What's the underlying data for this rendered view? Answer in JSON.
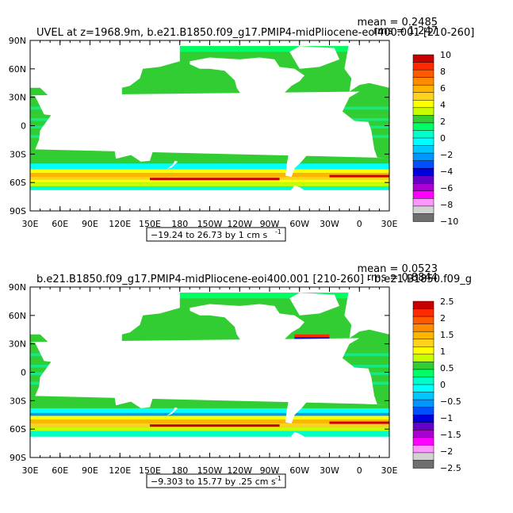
{
  "chart_data": [
    {
      "type": "heatmap",
      "title": "UVEL at z=1968.9m, b.e21.B1850.f09_g17.PMIP4-midPliocene-eoi400.001 [210-260]",
      "stats": {
        "mean": "mean = 0.2485",
        "rms": "rms = 1.247"
      },
      "x_ticks": [
        "30E",
        "60E",
        "90E",
        "120E",
        "150E",
        "180",
        "150W",
        "120W",
        "90W",
        "60W",
        "30W",
        "0",
        "30E"
      ],
      "y_ticks": [
        "90N",
        "60N",
        "30N",
        "0",
        "30S",
        "60S",
        "90S"
      ],
      "range_label": "−19.24 to 26.73 by 1 cm s",
      "range_unit_exp": "-1",
      "colorbar_labels": [
        "10",
        "8",
        "6",
        "4",
        "2",
        "0",
        "−2",
        "−4",
        "−6",
        "−8",
        "−10"
      ],
      "colorbar_colors": [
        "#c80000",
        "#ff2a00",
        "#ff5a00",
        "#ff8c00",
        "#ffb400",
        "#ffd21e",
        "#ffff00",
        "#c8ff00",
        "#32cd32",
        "#00ff64",
        "#00ffc8",
        "#00ffff",
        "#00c8ff",
        "#0096ff",
        "#0050ff",
        "#0000dc",
        "#6400c8",
        "#aa00d2",
        "#ff00ff",
        "#ff96ff",
        "#d2d2d2",
        "#6e6e6e"
      ]
    },
    {
      "type": "heatmap",
      "title": "b.e21.B1850.f09_g17.PMIP4-midPliocene-eoi400.001 [210-260] - b.e21.B1850.f09_g",
      "stats": {
        "mean": "mean = 0.0523",
        "rms": "rms = 0.8844"
      },
      "x_ticks": [
        "30E",
        "60E",
        "90E",
        "120E",
        "150E",
        "180",
        "150W",
        "120W",
        "90W",
        "60W",
        "30W",
        "0",
        "30E"
      ],
      "y_ticks": [
        "90N",
        "60N",
        "30N",
        "0",
        "30S",
        "60S",
        "90S"
      ],
      "range_label": "−9.303 to 15.77 by .25 cm s",
      "range_unit_exp": "-1",
      "colorbar_labels": [
        "2.5",
        "2",
        "1.5",
        "1",
        "0.5",
        "0",
        "−0.5",
        "−1",
        "−1.5",
        "−2",
        "−2.5"
      ],
      "colorbar_colors": [
        "#c80000",
        "#ff2a00",
        "#ff5a00",
        "#ff8c00",
        "#ffb400",
        "#ffd21e",
        "#ffff00",
        "#c8ff00",
        "#32cd32",
        "#00ff64",
        "#00ffc8",
        "#00ffff",
        "#00c8ff",
        "#0096ff",
        "#0050ff",
        "#0000dc",
        "#6400c8",
        "#aa00d2",
        "#ff00ff",
        "#ff96ff",
        "#d2d2d2",
        "#6e6e6e"
      ]
    }
  ]
}
